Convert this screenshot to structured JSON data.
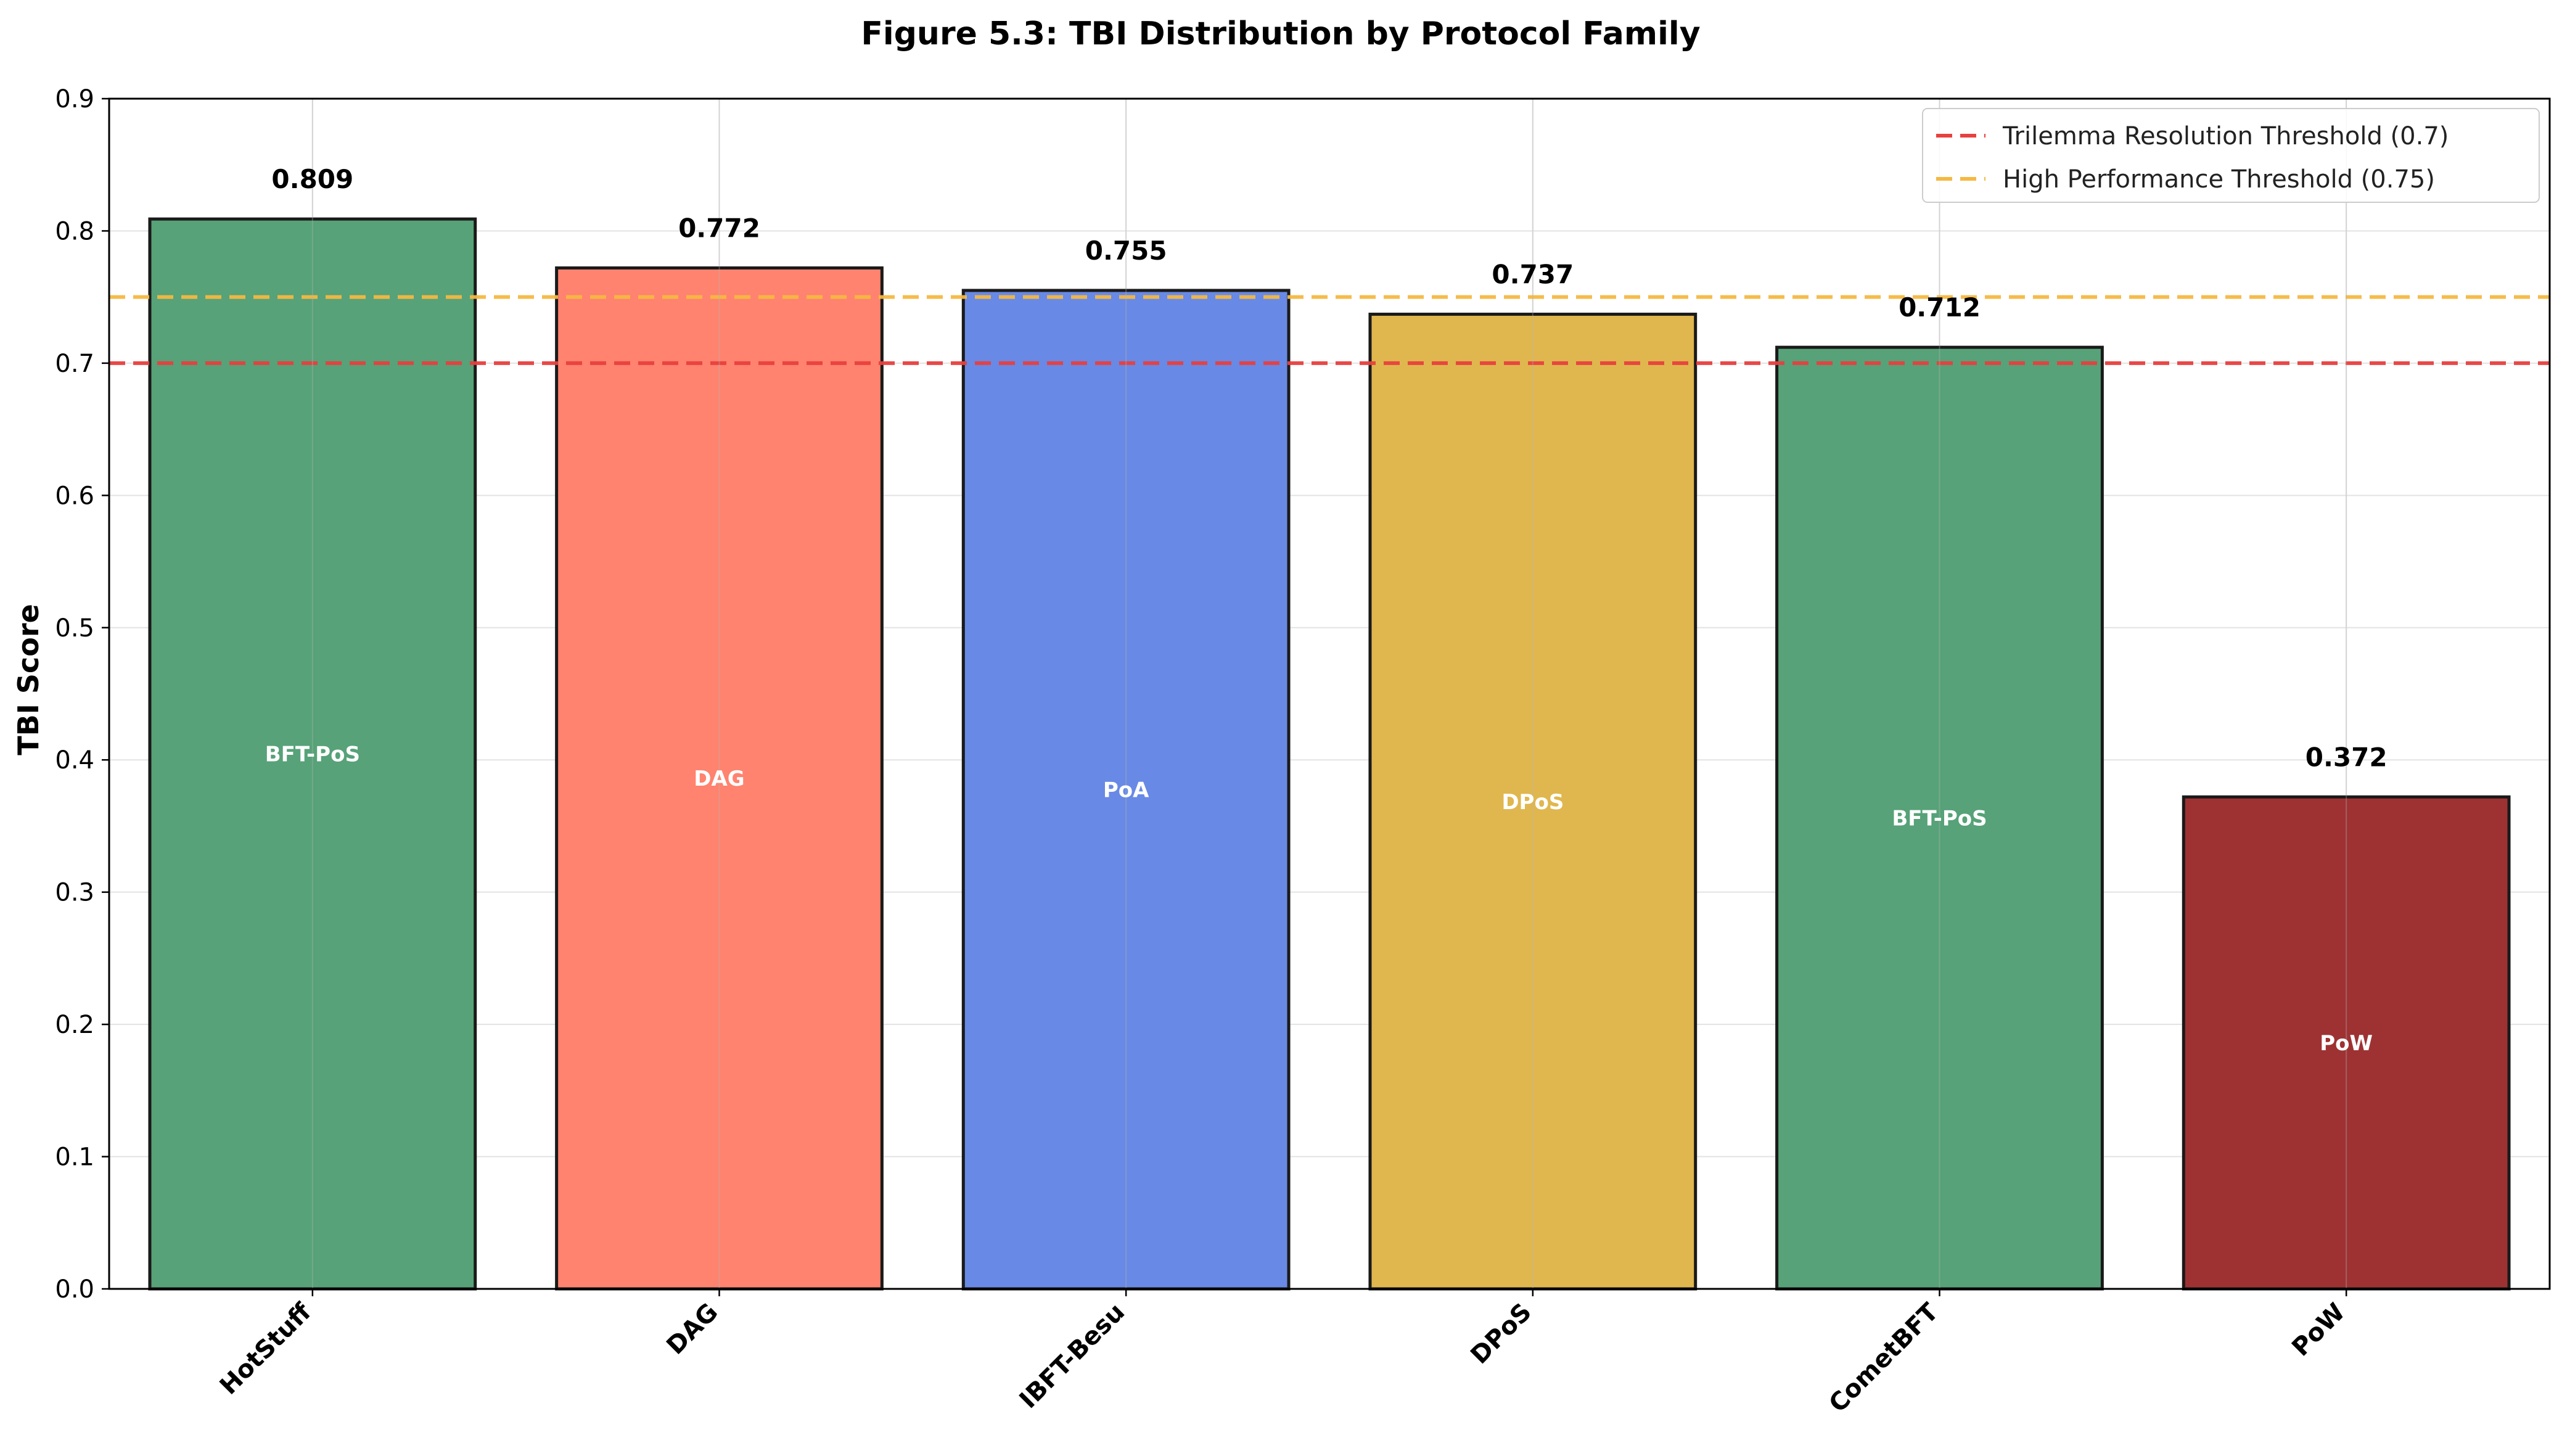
{
  "chart_data": {
    "type": "bar",
    "title": "Figure 5.3: TBI Distribution by Protocol Family",
    "xlabel": "",
    "ylabel": "TBI Score",
    "ylim": [
      0,
      0.9
    ],
    "yticks": [
      "0.0",
      "0.1",
      "0.2",
      "0.3",
      "0.4",
      "0.5",
      "0.6",
      "0.7",
      "0.8",
      "0.9"
    ],
    "grid": true,
    "legend_position": "top-right",
    "categories": [
      "HotStuff",
      "DAG",
      "IBFT-Besu",
      "DPoS",
      "CometBFT",
      "PoW"
    ],
    "values": [
      0.809,
      0.772,
      0.755,
      0.737,
      0.712,
      0.372
    ],
    "value_labels": [
      "0.809",
      "0.772",
      "0.755",
      "0.737",
      "0.712",
      "0.372"
    ],
    "families": [
      "BFT-PoS",
      "DAG",
      "PoA",
      "DPoS",
      "BFT-PoS",
      "PoW"
    ],
    "bar_colors": [
      "#57a278",
      "#ff836e",
      "#6889e5",
      "#e0b74e",
      "#57a278",
      "#9e3233"
    ],
    "thresholds": [
      {
        "name": "Trilemma Resolution Threshold (0.7)",
        "value": 0.7,
        "color": "#e8403f"
      },
      {
        "name": "High Performance Threshold (0.75)",
        "value": 0.75,
        "color": "#f5b942"
      }
    ]
  }
}
